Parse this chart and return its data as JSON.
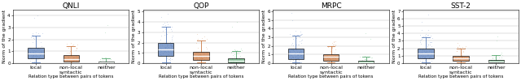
{
  "datasets": [
    "QNLI",
    "QOP",
    "MRPC",
    "SST-2"
  ],
  "categories": [
    "local",
    "non-local\nsyntactic",
    "neither"
  ],
  "xlabel": "Relation type between pairs of tokens",
  "ylabel": "Norm of the gradient",
  "box_colors": [
    "#5b7fba",
    "#c97a45",
    "#5aaa72"
  ],
  "scatter_colors": [
    "#7090c8",
    "#d4905a",
    "#6abf82"
  ],
  "box_data": {
    "QNLI": {
      "local": {
        "med": 0.8,
        "q1": 0.4,
        "q3": 1.3,
        "whislo": 0.05,
        "whishi": 2.3,
        "fliers_high": [
          3.8,
          4.0
        ],
        "n_scatter": 80,
        "scatter_max": 2.8,
        "scatter_concentration": 0.6
      },
      "non-local\nsyntactic": {
        "med": 0.35,
        "q1": 0.15,
        "q3": 0.65,
        "whislo": 0.02,
        "whishi": 1.4,
        "fliers_high": [
          1.6,
          1.7
        ],
        "n_scatter": 50,
        "scatter_max": 1.8,
        "scatter_concentration": 0.4
      },
      "neither": {
        "med": 0.05,
        "q1": 0.01,
        "q3": 0.12,
        "whislo": 0.0,
        "whishi": 0.4,
        "fliers_high": [
          2.6,
          3.2
        ],
        "n_scatter": 40,
        "scatter_max": 0.6,
        "scatter_concentration": 0.08
      }
    },
    "QOP": {
      "local": {
        "med": 1.3,
        "q1": 0.7,
        "q3": 2.0,
        "whislo": 0.1,
        "whishi": 3.5,
        "fliers_high": [
          4.5,
          4.8
        ],
        "n_scatter": 100,
        "scatter_max": 4.0,
        "scatter_concentration": 1.0
      },
      "non-local\nsyntactic": {
        "med": 0.7,
        "q1": 0.35,
        "q3": 1.1,
        "whislo": 0.05,
        "whishi": 2.2,
        "fliers_high": [
          2.6,
          2.8
        ],
        "n_scatter": 70,
        "scatter_max": 2.5,
        "scatter_concentration": 0.7
      },
      "neither": {
        "med": 0.25,
        "q1": 0.1,
        "q3": 0.5,
        "whislo": 0.0,
        "whishi": 1.2,
        "fliers_high": [
          3.5,
          4.0
        ],
        "n_scatter": 50,
        "scatter_max": 1.5,
        "scatter_concentration": 0.3
      }
    },
    "MRPC": {
      "local": {
        "med": 1.1,
        "q1": 0.5,
        "q3": 1.7,
        "whislo": 0.05,
        "whishi": 3.2,
        "fliers_high": [
          5.0,
          5.8
        ],
        "n_scatter": 120,
        "scatter_max": 4.0,
        "scatter_concentration": 1.0
      },
      "non-local\nsyntactic": {
        "med": 0.7,
        "q1": 0.3,
        "q3": 1.0,
        "whislo": 0.05,
        "whishi": 2.0,
        "fliers_high": [
          2.3,
          2.5
        ],
        "n_scatter": 60,
        "scatter_max": 2.5,
        "scatter_concentration": 0.6
      },
      "neither": {
        "med": 0.1,
        "q1": 0.03,
        "q3": 0.25,
        "whislo": 0.0,
        "whishi": 0.7,
        "fliers_high": [
          2.8,
          3.5
        ],
        "n_scatter": 40,
        "scatter_max": 1.0,
        "scatter_concentration": 0.12
      }
    },
    "SST-2": {
      "local": {
        "med": 1.3,
        "q1": 0.6,
        "q3": 2.0,
        "whislo": 0.1,
        "whishi": 3.5,
        "fliers_high": [
          5.5,
          6.5
        ],
        "n_scatter": 100,
        "scatter_max": 4.5,
        "scatter_concentration": 1.2
      },
      "non-local\nsyntactic": {
        "med": 0.6,
        "q1": 0.3,
        "q3": 1.0,
        "whislo": 0.05,
        "whishi": 2.0,
        "fliers_high": [
          2.4,
          2.7
        ],
        "n_scatter": 60,
        "scatter_max": 2.5,
        "scatter_concentration": 0.65
      },
      "neither": {
        "med": 0.2,
        "q1": 0.07,
        "q3": 0.45,
        "whislo": 0.0,
        "whishi": 1.1,
        "fliers_high": [
          3.0,
          3.6
        ],
        "n_scatter": 40,
        "scatter_max": 1.5,
        "scatter_concentration": 0.25
      }
    }
  },
  "ylims": {
    "QNLI": [
      0,
      4.5
    ],
    "QOP": [
      0,
      5.2
    ],
    "MRPC": [
      0,
      6.2
    ],
    "SST-2": [
      0,
      7.2
    ]
  },
  "yticks": {
    "QNLI": [
      0,
      1,
      2,
      3,
      4
    ],
    "QOP": [
      0,
      1,
      2,
      3,
      4,
      5
    ],
    "MRPC": [
      0,
      1,
      2,
      3,
      4,
      5,
      6
    ],
    "SST-2": [
      0,
      1,
      2,
      3,
      4,
      5,
      6,
      7
    ]
  },
  "title_fontsize": 6.5,
  "label_fontsize": 4.5,
  "tick_fontsize": 4.0,
  "background_color": "#ffffff"
}
